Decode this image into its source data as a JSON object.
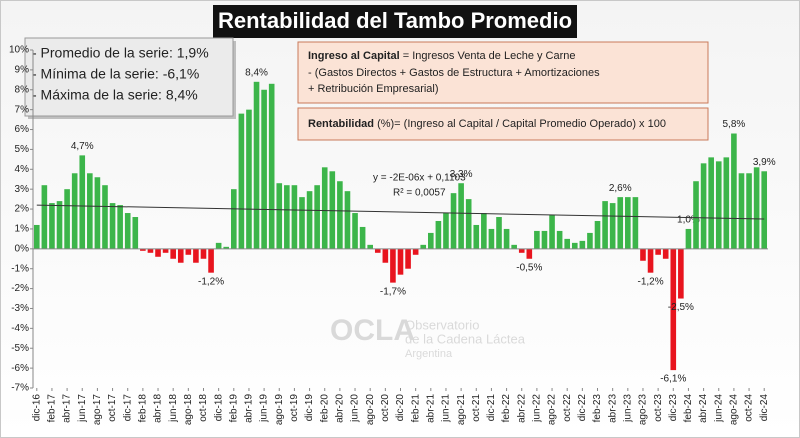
{
  "chart_data": {
    "type": "bar",
    "title": "Rentabilidad del Tambo Promedio",
    "stats": [
      "- Promedio de la serie: 1,9%",
      "- Mínima de la serie: -6,1%",
      "- Máxima de la serie: 8,4%"
    ],
    "formula_box": {
      "term": "Ingreso al Capital",
      "line1": " = Ingresos Venta de Leche y Carne",
      "line2": "-  (Gastos Directos + Gastos de Estructura  + Amortizaciones",
      "line3": "+  Retribución Empresarial)"
    },
    "definition_box": {
      "term": "Rentabilidad",
      "text": " (%)= (Ingreso al Capital / Capital Promedio Operado) x 100"
    },
    "trend_equation": "y = -2E-06x + 0,1103",
    "trend_r2": "R² = 0,0057",
    "trendline": {
      "values": [
        2.2,
        1.5
      ]
    },
    "watermark": {
      "logo": "OCLA",
      "line1": "Observatorio",
      "line2": "de la Cadena Láctea",
      "line3": "Argentina"
    },
    "categories": [
      "dic-16",
      null,
      "feb-17",
      null,
      "abr-17",
      null,
      "jun-17",
      null,
      "ago-17",
      null,
      "oct-17",
      null,
      "dic-17",
      null,
      "feb-18",
      null,
      "abr-18",
      null,
      "jun-18",
      null,
      "ago-18",
      null,
      "oct-18",
      null,
      "dic-18",
      null,
      "feb-19",
      null,
      "abr-19",
      null,
      "jun-19",
      null,
      "ago-19",
      null,
      "oct-19",
      null,
      "dic-19",
      null,
      "feb-20",
      null,
      "abr-20",
      null,
      "jun-20",
      null,
      "ago-20",
      null,
      "oct-20",
      null,
      "dic-20",
      null,
      "feb-21",
      null,
      "abr-21",
      null,
      "jun-21",
      null,
      "ago-21",
      null,
      "oct-21",
      null,
      "dic-21",
      null,
      "feb-22",
      null,
      "abr-22",
      null,
      "jun-22",
      null,
      "ago-22",
      null,
      "oct-22",
      null,
      "dic-22",
      null,
      "feb-23",
      null,
      "abr-23",
      null,
      "jun-23",
      null,
      "ago-23",
      null,
      "oct-23",
      null,
      "dic-23",
      null,
      "feb-24",
      null,
      "abr-24",
      null,
      "jun-24",
      null,
      "ago-24",
      null,
      "oct-24",
      null,
      "dic-24"
    ],
    "values": [
      1.2,
      3.2,
      2.3,
      2.4,
      3.0,
      3.8,
      4.7,
      3.8,
      3.6,
      3.2,
      2.3,
      2.2,
      1.8,
      1.6,
      -0.1,
      -0.2,
      -0.4,
      -0.2,
      -0.5,
      -0.7,
      -0.3,
      -0.7,
      -0.5,
      -1.2,
      0.3,
      0.1,
      3.0,
      6.8,
      7.0,
      8.4,
      8.0,
      8.3,
      3.3,
      3.2,
      3.2,
      2.6,
      2.9,
      3.2,
      4.1,
      3.9,
      3.4,
      2.9,
      1.8,
      1.1,
      0.2,
      -0.2,
      -0.7,
      -1.7,
      -1.3,
      -1.0,
      -0.3,
      0.2,
      0.8,
      1.4,
      1.8,
      2.8,
      3.3,
      2.5,
      1.2,
      1.8,
      1.0,
      1.6,
      1.0,
      0.2,
      -0.2,
      -0.5,
      0.9,
      0.9,
      1.7,
      0.9,
      0.5,
      0.3,
      0.4,
      0.8,
      1.4,
      2.4,
      2.3,
      2.6,
      2.6,
      2.6,
      -0.6,
      -1.2,
      -0.3,
      -0.5,
      -6.1,
      -2.5,
      1.0,
      3.4,
      4.3,
      4.6,
      4.4,
      4.6,
      5.8,
      3.8,
      3.8,
      4.1,
      3.9
    ],
    "value_labels": [
      null,
      null,
      null,
      null,
      null,
      null,
      "4,7%",
      null,
      null,
      null,
      null,
      null,
      null,
      null,
      null,
      null,
      null,
      null,
      null,
      null,
      null,
      null,
      null,
      "-1,2%",
      null,
      null,
      null,
      null,
      null,
      "8,4%",
      null,
      null,
      null,
      null,
      null,
      null,
      null,
      null,
      null,
      null,
      null,
      null,
      null,
      null,
      null,
      null,
      null,
      "-1,7%",
      null,
      null,
      null,
      null,
      null,
      null,
      null,
      null,
      "3,3%",
      null,
      null,
      null,
      null,
      null,
      null,
      null,
      null,
      "-0,5%",
      null,
      null,
      null,
      null,
      null,
      null,
      null,
      null,
      null,
      null,
      null,
      "2,6%",
      null,
      null,
      null,
      "-1,2%",
      null,
      null,
      "-6,1%",
      "-2,5%",
      "1,0%",
      null,
      null,
      null,
      null,
      null,
      "5,8%",
      null,
      null,
      null,
      "3,9%"
    ],
    "color": "#3cb54a",
    "negative_color": "#e8141e",
    "trend_color": "#333333",
    "ylim": [
      -7,
      10
    ],
    "yticks": [
      {
        "value": -7,
        "label": "-7%"
      },
      {
        "value": -6,
        "label": "-6%"
      },
      {
        "value": -5,
        "label": "-5%"
      },
      {
        "value": -4,
        "label": "-4%"
      },
      {
        "value": -3,
        "label": "-3%"
      },
      {
        "value": -2,
        "label": "-2%"
      },
      {
        "value": -1,
        "label": "-1%"
      },
      {
        "value": 0,
        "label": "0%"
      },
      {
        "value": 1,
        "label": "1%"
      },
      {
        "value": 2,
        "label": "2%"
      },
      {
        "value": 3,
        "label": "3%"
      },
      {
        "value": 4,
        "label": "4%"
      },
      {
        "value": 5,
        "label": "5%"
      },
      {
        "value": 6,
        "label": "6%"
      },
      {
        "value": 7,
        "label": "7%"
      },
      {
        "value": 8,
        "label": "8%"
      },
      {
        "value": 9,
        "label": "9%"
      },
      {
        "value": 10,
        "label": "10%"
      }
    ],
    "grid": false
  }
}
